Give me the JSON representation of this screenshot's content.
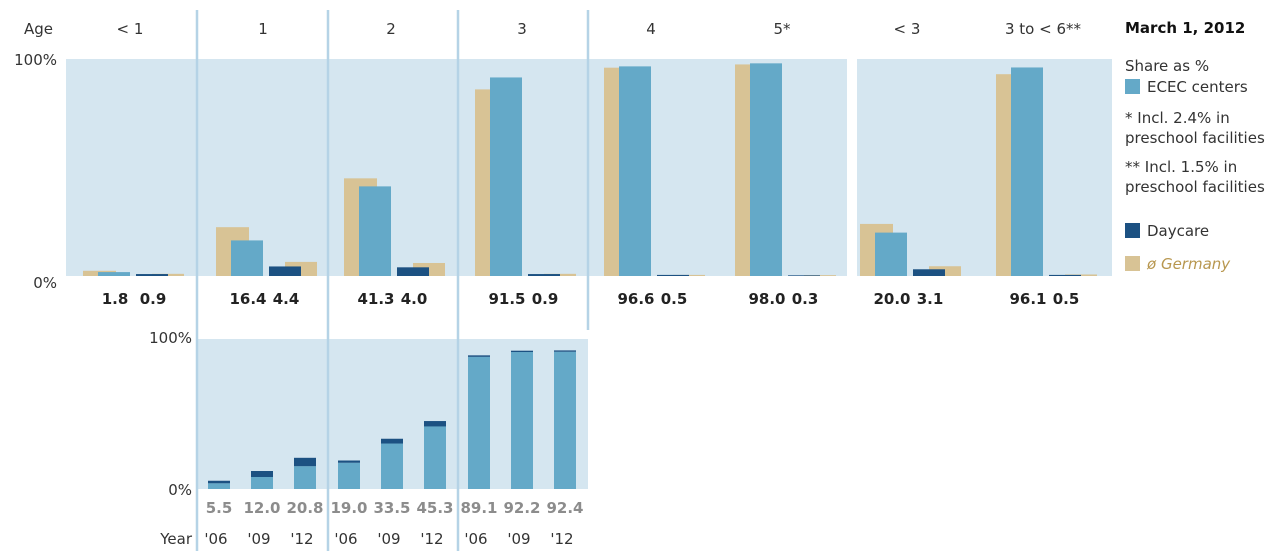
{
  "colors": {
    "panel_bg": "#d5e6f0",
    "divider": "#b5d3e6",
    "ecec": "#64a9c8",
    "daycare": "#1c5182",
    "germany": "#d8c395",
    "germany_text": "#b8974f",
    "hist_value": "#8c8c8c"
  },
  "legend": {
    "date": "March 1, 2012",
    "share_label": "Share as %",
    "ecec_label": "ECEC centers",
    "note1_line1": "* Incl. 2.4% in",
    "note1_line2": "preschool facilities",
    "note2_line1": "** Incl. 1.5% in",
    "note2_line2": "preschool facilities",
    "daycare_label": "Daycare",
    "germany_label": "ø Germany"
  },
  "chart_data": [
    {
      "type": "bar",
      "x_axis_label": "Age",
      "y_ticks": [
        "100%",
        "0%"
      ],
      "ylim": [
        0,
        100
      ],
      "categories": [
        "< 1",
        "1",
        "2",
        "3",
        "4",
        "5*",
        "< 3",
        "3 to < 6**"
      ],
      "series": [
        {
          "name": "ECEC centers",
          "values": [
            1.8,
            16.4,
            41.3,
            91.5,
            96.6,
            98.0,
            20.0,
            96.1
          ]
        },
        {
          "name": "Daycare",
          "values": [
            0.9,
            4.4,
            4.0,
            0.9,
            0.5,
            0.3,
            3.1,
            0.5
          ]
        },
        {
          "name": "ø Germany",
          "paired_with": "ECEC centers",
          "values": [
            2.4,
            22.5,
            45.0,
            86.0,
            96.0,
            97.5,
            24.0,
            93.0
          ]
        },
        {
          "name": "ø Germany",
          "paired_with": "Daycare",
          "values": [
            1.0,
            6.5,
            6.0,
            1.0,
            0.5,
            0.4,
            4.5,
            0.7
          ]
        }
      ],
      "value_labels": [
        [
          "1.8",
          "0.9"
        ],
        [
          "16.4",
          "4.4"
        ],
        [
          "41.3",
          "4.0"
        ],
        [
          "91.5",
          "0.9"
        ],
        [
          "96.6",
          "0.5"
        ],
        [
          "98.0",
          "0.3"
        ],
        [
          "20.0",
          "3.1"
        ],
        [
          "96.1",
          "0.5"
        ]
      ]
    },
    {
      "type": "bar",
      "stacked": true,
      "x_axis_label": "Year",
      "y_ticks": [
        "100%",
        "0%"
      ],
      "ylim": [
        0,
        100
      ],
      "groups": [
        {
          "age": "1",
          "years": [
            "'06",
            "'09",
            "'12"
          ],
          "ecec": [
            3.8,
            8.0,
            15.2
          ],
          "daycare": [
            1.7,
            4.0,
            5.6
          ],
          "totals": [
            "5.5",
            "12.0",
            "20.8"
          ]
        },
        {
          "age": "2",
          "years": [
            "'06",
            "'09",
            "'12"
          ],
          "ecec": [
            17.5,
            30.3,
            41.7
          ],
          "daycare": [
            1.5,
            3.2,
            3.6
          ],
          "totals": [
            "19.0",
            "33.5",
            "45.3"
          ]
        },
        {
          "age": "3",
          "years": [
            "'06",
            "'09",
            "'12"
          ],
          "ecec": [
            88.1,
            91.3,
            91.5
          ],
          "daycare": [
            1.0,
            0.9,
            0.9
          ],
          "totals": [
            "89.1",
            "92.2",
            "92.4"
          ]
        }
      ]
    }
  ]
}
